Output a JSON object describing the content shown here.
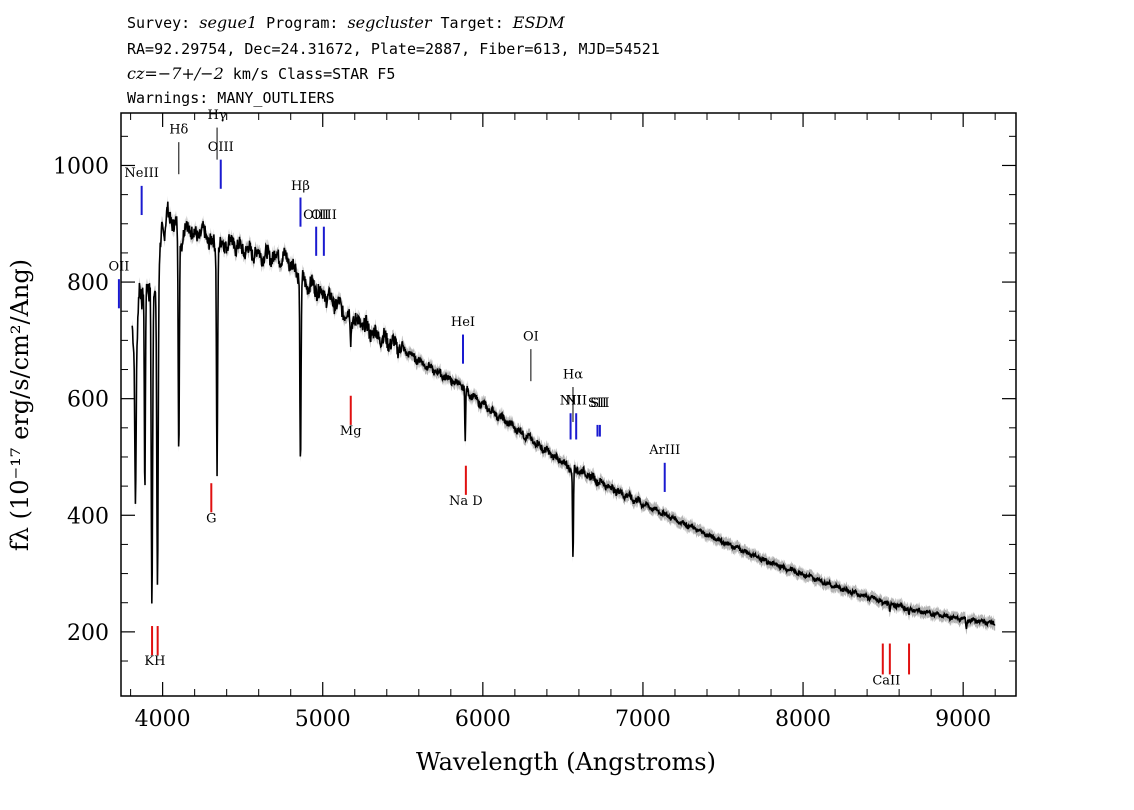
{
  "header": {
    "line1": {
      "survey_label": "Survey: ",
      "survey": "segue1",
      "program_label": " Program: ",
      "program": "segcluster",
      "target_label": " Target: ",
      "target": "ESDM"
    },
    "line2": "RA=92.29754, Dec=24.31672, Plate=2887, Fiber=613, MJD=54521",
    "line3": {
      "cz": "cz=−7+/−2",
      "rest": " km/s Class=STAR F5"
    },
    "line4": "Warnings: MANY_OUTLIERS"
  },
  "colors": {
    "spectrum": "#000000",
    "error_band": "#b4b4b4",
    "emission": "#1a1ad0",
    "absorption": "#e01010"
  },
  "chart_data": {
    "type": "line",
    "xlabel": "Wavelength (Angstroms)",
    "ylabel": "fλ (10⁻¹⁷ erg/s/cm²/Ang)",
    "xlim": [
      3740,
      9330
    ],
    "ylim": [
      90,
      1090
    ],
    "x_ticks": [
      4000,
      5000,
      6000,
      7000,
      8000,
      9000
    ],
    "y_ticks": [
      200,
      400,
      600,
      800,
      1000
    ],
    "x_tick_labels": [
      "4000",
      "5000",
      "6000",
      "7000",
      "8000",
      "9000"
    ],
    "y_tick_labels": [
      "200",
      "400",
      "600",
      "800",
      "1000"
    ],
    "grid": false,
    "series": [
      {
        "x": [
          3810,
          3825,
          3835,
          3845,
          3855,
          3870,
          3885,
          3900,
          3915,
          3925,
          3935,
          3950,
          3960,
          3968,
          3980,
          3995,
          4010,
          4030,
          4050,
          4080,
          4100,
          4120,
          4150,
          4200,
          4250,
          4300,
          4340,
          4380,
          4420,
          4470,
          4520,
          4580,
          4650,
          4720,
          4780,
          4820,
          4850,
          4880,
          4920,
          4960,
          5000,
          5050,
          5100,
          5150,
          5200,
          5260,
          5300,
          5400,
          5500,
          5600,
          5700,
          5800,
          5880,
          5950,
          6000,
          6100,
          6200,
          6300,
          6400,
          6500,
          6550,
          6600,
          6700,
          6800,
          7000,
          7200,
          7400,
          7600,
          7800,
          8000,
          8200,
          8400,
          8540,
          8700,
          8900,
          9100,
          9200
        ],
        "y": [
          720,
          670,
          650,
          740,
          790,
          760,
          820,
          800,
          770,
          810,
          780,
          800,
          770,
          790,
          840,
          900,
          880,
          920,
          910,
          895,
          900,
          870,
          900,
          880,
          885,
          870,
          860,
          865,
          870,
          860,
          855,
          850,
          845,
          845,
          840,
          825,
          815,
          800,
          795,
          790,
          780,
          770,
          760,
          745,
          735,
          725,
          715,
          700,
          685,
          665,
          648,
          632,
          620,
          600,
          590,
          570,
          550,
          530,
          510,
          490,
          480,
          478,
          462,
          447,
          420,
          393,
          367,
          342,
          318,
          299,
          278,
          260,
          249,
          237,
          226,
          218,
          215
        ]
      }
    ],
    "absorption_dips": [
      {
        "x": 3830,
        "y": 425
      },
      {
        "x": 3889,
        "y": 455
      },
      {
        "x": 3933,
        "y": 248
      },
      {
        "x": 3968,
        "y": 272
      },
      {
        "x": 4101,
        "y": 500
      },
      {
        "x": 4340,
        "y": 480
      },
      {
        "x": 4861,
        "y": 478
      },
      {
        "x": 5175,
        "y": 700
      },
      {
        "x": 5890,
        "y": 530
      },
      {
        "x": 6563,
        "y": 320
      },
      {
        "x": 8498,
        "y": 243
      },
      {
        "x": 8542,
        "y": 232
      },
      {
        "x": 8662,
        "y": 224
      },
      {
        "x": 9020,
        "y": 205
      }
    ],
    "emission_lines": [
      {
        "label": "OII",
        "x": 3727,
        "y0": 755,
        "y1": 805,
        "label_y": 820
      },
      {
        "label": "NeIII",
        "x": 3869,
        "y0": 915,
        "y1": 965,
        "label_y": 980
      },
      {
        "label": "OIII",
        "x": 4363,
        "y0": 960,
        "y1": 1010,
        "label_y": 1025
      },
      {
        "label": "Hβ",
        "x": 4861,
        "y0": 895,
        "y1": 945,
        "label_y": 958
      },
      {
        "label": "OIII",
        "x": 4959,
        "y0": 845,
        "y1": 895,
        "label_y": 908
      },
      {
        "label": "OIII",
        "x": 5007,
        "y0": 845,
        "y1": 895,
        "label_y": 908
      },
      {
        "label": "HeI",
        "x": 5876,
        "y0": 660,
        "y1": 710,
        "label_y": 725
      },
      {
        "label": "NII",
        "x": 6548,
        "y0": 530,
        "y1": 575,
        "label_y": 590
      },
      {
        "label": "NII",
        "x": 6583,
        "y0": 530,
        "y1": 575,
        "label_y": 590
      },
      {
        "label": "SII",
        "x": 6716,
        "y0": 535,
        "y1": 555,
        "label_y": 586
      },
      {
        "label": "SII",
        "x": 6731,
        "y0": 535,
        "y1": 555,
        "label_y": 586
      },
      {
        "label": "ArIII",
        "x": 7136,
        "y0": 440,
        "y1": 490,
        "label_y": 505
      }
    ],
    "balmer_lines": [
      {
        "label": "Hδ",
        "x": 4101,
        "y0": 985,
        "y1": 1040,
        "label_y": 1055
      },
      {
        "label": "Hγ",
        "x": 4340,
        "y0": 1010,
        "y1": 1065,
        "label_y": 1080
      },
      {
        "label": "OI",
        "x": 6300,
        "y0": 630,
        "y1": 685,
        "label_y": 700
      },
      {
        "label": "Hα",
        "x": 6563,
        "y0": 560,
        "y1": 620,
        "label_y": 635
      }
    ],
    "absorption_lines": [
      {
        "label": "KH",
        "x": 3934,
        "y0": 160,
        "y1": 210,
        "label_y": 143,
        "label_x": 3952
      },
      {
        "label": "",
        "x": 3969,
        "y0": 160,
        "y1": 210
      },
      {
        "label": "G",
        "x": 4304,
        "y0": 405,
        "y1": 455,
        "label_y": 388,
        "label_x": 4304
      },
      {
        "label": "Mg",
        "x": 5175,
        "y0": 555,
        "y1": 605,
        "label_y": 538,
        "label_x": 5175
      },
      {
        "label": "Na D",
        "x": 5894,
        "y0": 435,
        "y1": 485,
        "label_y": 418,
        "label_x": 5894
      },
      {
        "label": "CaII",
        "x": 8498,
        "y0": 127,
        "y1": 180,
        "label_y": 110,
        "label_x": 8520
      },
      {
        "label": "",
        "x": 8542,
        "y0": 127,
        "y1": 180
      },
      {
        "label": "",
        "x": 8662,
        "y0": 127,
        "y1": 180
      }
    ]
  }
}
